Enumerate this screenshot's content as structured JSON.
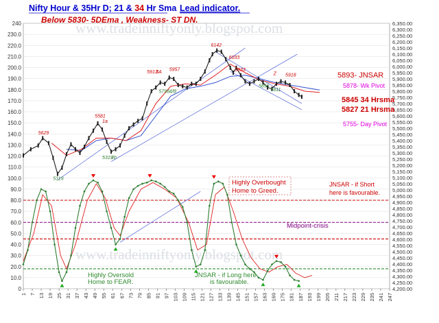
{
  "header": {
    "title_a": "Nifty Hour & 35Hr D; 21 & ",
    "title_b": "34",
    "title_c": " Hr Sma",
    "lead": "Lead indicator.",
    "subtitle": "Below 5830-  5DEma , Weakness- ST  DN."
  },
  "watermark": {
    "url_top": "www.tradeinniftyonly.blogspot.com",
    "url_bottom": "www.tradeinniftyonly.blogspot.com"
  },
  "annotations": {
    "jnsar": "5893- JNSAR",
    "wk_pivot": "5878- Wk Pivot",
    "hrsma34": "5845 34 Hrsma",
    "hrsma21": "5827 21 Hrsma",
    "day_pivot": "5755- Day Pivot",
    "overbought_1": "Highly Overbought",
    "overbought_2": "Home to Greed.",
    "jnsar_short_1": "JNSAR - if Short",
    "jnsar_short_2": "here is favourable.",
    "midpoint": "Midpoint-crisis",
    "oversold_1": "Highly Oversold",
    "oversold_2": "Home to FEAR.",
    "jnsar_long_1": "JNSAR - if Long here",
    "jnsar_long_2": "is favourable."
  },
  "colors": {
    "price": "#1f1f1f",
    "sma21": "#e02020",
    "sma34": "#3050d0",
    "oscillator": "#2e7d32",
    "signal": "#e02020",
    "level_red": "#cc0000",
    "level_purple": "#800080",
    "level_green": "#2e8b2e",
    "title_blue": "#0000cc",
    "subtitle_red": "#cc0000",
    "magenta": "#e000e0",
    "trend": "#6677dd"
  },
  "chart_data": {
    "type": "line",
    "title": "Nifty Hour & 35Hr D; 21 & 34 Hr Sma",
    "left_axis": {
      "min": 0,
      "max": 240,
      "step": 10,
      "labels": [
        "0",
        "10.0",
        "20.0",
        "30.0",
        "40.0",
        "50.0",
        "60.0",
        "70.0",
        "80.0",
        "90.0",
        "100.0",
        "110.0",
        "120.0",
        "130.0",
        "140.0",
        "150.0",
        "160.0",
        "170.0",
        "180.0",
        "190.0",
        "200.0",
        "210.0",
        "220.0",
        "230.0",
        "240"
      ]
    },
    "right_axis": {
      "min": 4200,
      "max": 6350,
      "step": 50
    },
    "x_axis": {
      "min": 1,
      "max": 247,
      "ticks": [
        1,
        7,
        13,
        19,
        25,
        31,
        37,
        43,
        49,
        55,
        61,
        67,
        73,
        79,
        85,
        91,
        97,
        103,
        109,
        115,
        121,
        127,
        133,
        139,
        145,
        151,
        157,
        163,
        169,
        175,
        181,
        187,
        193,
        199,
        205,
        211,
        217,
        223,
        229,
        235,
        241,
        247
      ]
    },
    "price_points": [
      [
        1,
        5280
      ],
      [
        6,
        5330
      ],
      [
        11,
        5360
      ],
      [
        14,
        5420
      ],
      [
        18,
        5380
      ],
      [
        21,
        5260
      ],
      [
        24,
        5130
      ],
      [
        27,
        5180
      ],
      [
        30,
        5290
      ],
      [
        33,
        5370
      ],
      [
        36,
        5330
      ],
      [
        39,
        5300
      ],
      [
        42,
        5350
      ],
      [
        45,
        5420
      ],
      [
        48,
        5480
      ],
      [
        51,
        5540
      ],
      [
        54,
        5490
      ],
      [
        57,
        5390
      ],
      [
        60,
        5310
      ],
      [
        63,
        5330
      ],
      [
        66,
        5360
      ],
      [
        69,
        5440
      ],
      [
        72,
        5500
      ],
      [
        75,
        5530
      ],
      [
        78,
        5560
      ],
      [
        81,
        5580
      ],
      [
        84,
        5700
      ],
      [
        87,
        5800
      ],
      [
        90,
        5830
      ],
      [
        93,
        5870
      ],
      [
        96,
        5860
      ],
      [
        99,
        5910
      ],
      [
        102,
        5900
      ],
      [
        105,
        5850
      ],
      [
        108,
        5840
      ],
      [
        111,
        5830
      ],
      [
        114,
        5860
      ],
      [
        117,
        5860
      ],
      [
        120,
        5900
      ],
      [
        123,
        5960
      ],
      [
        126,
        6050
      ],
      [
        128,
        6100
      ],
      [
        131,
        6130
      ],
      [
        134,
        6120
      ],
      [
        137,
        6060
      ],
      [
        140,
        5990
      ],
      [
        142,
        5950
      ],
      [
        144,
        5990
      ],
      [
        147,
        5930
      ],
      [
        150,
        5880
      ],
      [
        153,
        5860
      ],
      [
        156,
        5880
      ],
      [
        159,
        5900
      ],
      [
        162,
        5870
      ],
      [
        165,
        5830
      ],
      [
        168,
        5820
      ],
      [
        171,
        5860
      ],
      [
        174,
        5880
      ],
      [
        177,
        5870
      ],
      [
        180,
        5850
      ],
      [
        183,
        5800
      ],
      [
        186,
        5770
      ],
      [
        188,
        5755
      ]
    ],
    "sma21_points": [
      [
        20,
        5380
      ],
      [
        30,
        5280
      ],
      [
        40,
        5330
      ],
      [
        50,
        5420
      ],
      [
        60,
        5420
      ],
      [
        70,
        5400
      ],
      [
        80,
        5480
      ],
      [
        90,
        5700
      ],
      [
        100,
        5840
      ],
      [
        110,
        5860
      ],
      [
        120,
        5850
      ],
      [
        130,
        5930
      ],
      [
        140,
        6020
      ],
      [
        150,
        5950
      ],
      [
        160,
        5890
      ],
      [
        170,
        5860
      ],
      [
        180,
        5840
      ],
      [
        190,
        5800
      ],
      [
        200,
        5790
      ]
    ],
    "sma34_points": [
      [
        30,
        5330
      ],
      [
        40,
        5320
      ],
      [
        50,
        5400
      ],
      [
        60,
        5420
      ],
      [
        70,
        5400
      ],
      [
        80,
        5440
      ],
      [
        90,
        5600
      ],
      [
        100,
        5760
      ],
      [
        110,
        5820
      ],
      [
        120,
        5840
      ],
      [
        130,
        5870
      ],
      [
        140,
        5920
      ],
      [
        150,
        5930
      ],
      [
        160,
        5900
      ],
      [
        170,
        5870
      ],
      [
        180,
        5850
      ],
      [
        190,
        5830
      ],
      [
        200,
        5810
      ]
    ],
    "oscillator_points": [
      [
        1,
        22
      ],
      [
        4,
        35
      ],
      [
        7,
        60
      ],
      [
        10,
        80
      ],
      [
        13,
        90
      ],
      [
        16,
        88
      ],
      [
        19,
        70
      ],
      [
        22,
        40
      ],
      [
        25,
        15
      ],
      [
        27,
        7
      ],
      [
        30,
        15
      ],
      [
        33,
        30
      ],
      [
        36,
        55
      ],
      [
        39,
        75
      ],
      [
        42,
        88
      ],
      [
        45,
        95
      ],
      [
        48,
        98
      ],
      [
        51,
        96
      ],
      [
        54,
        88
      ],
      [
        57,
        70
      ],
      [
        60,
        55
      ],
      [
        63,
        40
      ],
      [
        66,
        45
      ],
      [
        69,
        65
      ],
      [
        72,
        82
      ],
      [
        75,
        90
      ],
      [
        78,
        93
      ],
      [
        81,
        95
      ],
      [
        84,
        96
      ],
      [
        87,
        98
      ],
      [
        90,
        97
      ],
      [
        93,
        95
      ],
      [
        96,
        92
      ],
      [
        99,
        88
      ],
      [
        102,
        86
      ],
      [
        105,
        80
      ],
      [
        108,
        74
      ],
      [
        111,
        60
      ],
      [
        114,
        35
      ],
      [
        117,
        20
      ],
      [
        120,
        22
      ],
      [
        123,
        35
      ],
      [
        126,
        75
      ],
      [
        129,
        95
      ],
      [
        132,
        97
      ],
      [
        135,
        95
      ],
      [
        138,
        85
      ],
      [
        141,
        60
      ],
      [
        144,
        40
      ],
      [
        147,
        30
      ],
      [
        150,
        22
      ],
      [
        153,
        18
      ],
      [
        156,
        15
      ],
      [
        159,
        10
      ],
      [
        162,
        8
      ],
      [
        165,
        16
      ],
      [
        168,
        22
      ],
      [
        171,
        25
      ],
      [
        174,
        24
      ],
      [
        177,
        20
      ],
      [
        180,
        12
      ],
      [
        183,
        8
      ],
      [
        186,
        7
      ]
    ],
    "signal_points": [
      [
        1,
        25
      ],
      [
        8,
        50
      ],
      [
        14,
        85
      ],
      [
        20,
        75
      ],
      [
        26,
        30
      ],
      [
        30,
        18
      ],
      [
        36,
        40
      ],
      [
        44,
        80
      ],
      [
        50,
        95
      ],
      [
        56,
        82
      ],
      [
        62,
        55
      ],
      [
        66,
        48
      ],
      [
        72,
        70
      ],
      [
        80,
        90
      ],
      [
        88,
        96
      ],
      [
        96,
        90
      ],
      [
        104,
        82
      ],
      [
        112,
        60
      ],
      [
        118,
        35
      ],
      [
        124,
        40
      ],
      [
        130,
        85
      ],
      [
        136,
        92
      ],
      [
        142,
        70
      ],
      [
        148,
        45
      ],
      [
        154,
        28
      ],
      [
        160,
        18
      ],
      [
        166,
        15
      ],
      [
        172,
        20
      ],
      [
        178,
        22
      ],
      [
        184,
        14
      ],
      [
        190,
        10
      ],
      [
        195,
        12
      ]
    ],
    "horizontal_levels": [
      {
        "name": "JNSAR short",
        "value": 80,
        "color": "#cc0000"
      },
      {
        "name": "Midpoint",
        "value": 60,
        "color": "#800080"
      },
      {
        "name": "Lower red",
        "value": 45,
        "color": "#cc0000"
      },
      {
        "name": "JNSAR long",
        "value": 18,
        "color": "#2e8b2e"
      }
    ],
    "price_labels": [
      {
        "x": 11,
        "y": 5450,
        "text": "5629"
      },
      {
        "x": 21,
        "y": 5080,
        "text": "5119"
      },
      {
        "x": 49,
        "y": 5585,
        "text": "5581"
      },
      {
        "x": 54,
        "y": 5545,
        "text": "1a"
      },
      {
        "x": 54,
        "y": 5250,
        "text": "5319"
      },
      {
        "x": 60,
        "y": 5250,
        "text": "2b"
      },
      {
        "x": 84,
        "y": 5945,
        "text": "5913"
      },
      {
        "x": 90,
        "y": 5945,
        "text": "3A"
      },
      {
        "x": 99,
        "y": 5965,
        "text": "5957"
      },
      {
        "x": 92,
        "y": 5785,
        "text": "5798"
      },
      {
        "x": 99,
        "y": 5785,
        "text": "4/B"
      },
      {
        "x": 127,
        "y": 6160,
        "text": "6142"
      },
      {
        "x": 139,
        "y": 6060,
        "text": "6033"
      },
      {
        "x": 143,
        "y": 5960,
        "text": "5933"
      },
      {
        "x": 159,
        "y": 5830,
        "text": "5855"
      },
      {
        "x": 167,
        "y": 5800,
        "text": "5811"
      },
      {
        "x": 169,
        "y": 5930,
        "text": "Z"
      },
      {
        "x": 177,
        "y": 5920,
        "text": "5918"
      }
    ]
  }
}
